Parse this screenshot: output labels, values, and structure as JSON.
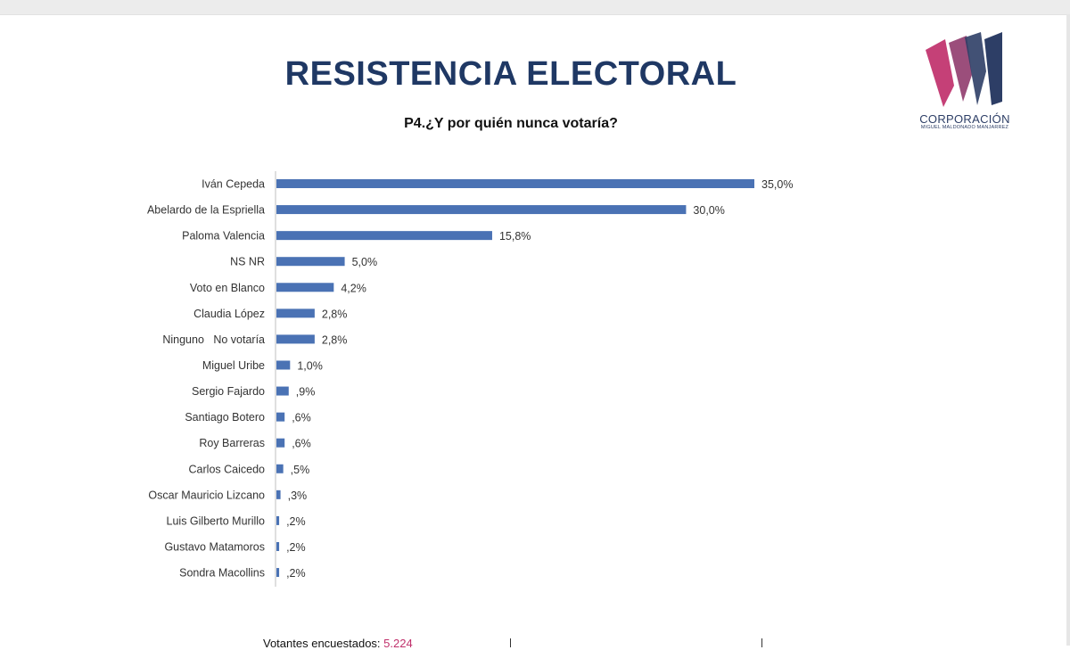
{
  "header": {
    "title": "RESISTENCIA ELECTORAL",
    "subtitle": "P4.¿Y por quién nunca votaría?"
  },
  "logo": {
    "word": "CORPORACIÓN",
    "subword": "MIGUEL MALDONADO MANJARREZ",
    "colors": [
      "#c0306b",
      "#2d3e66"
    ]
  },
  "footer": {
    "label": "Votantes encuestados:",
    "value": "5.224"
  },
  "chart_data": {
    "type": "bar",
    "orientation": "horizontal",
    "categories": [
      "Iván Cepeda",
      "Abelardo de la Espriella",
      "Paloma Valencia",
      "NS NR",
      "Voto en Blanco",
      "Claudia López",
      "Ninguno   No votaría",
      "Miguel Uribe",
      "Sergio Fajardo",
      "Santiago Botero",
      "Roy Barreras",
      "Carlos Caicedo",
      "Oscar Mauricio Lizcano",
      "Luis Gilberto Murillo",
      "Gustavo Matamoros",
      "Sondra Macollins"
    ],
    "values": [
      35.0,
      30.0,
      15.8,
      5.0,
      4.2,
      2.8,
      2.8,
      1.0,
      0.9,
      0.6,
      0.6,
      0.5,
      0.3,
      0.2,
      0.2,
      0.2
    ],
    "labels": [
      "35,0%",
      "30,0%",
      "15,8%",
      "5,0%",
      "4,2%",
      "2,8%",
      "2,8%",
      "1,0%",
      ",9%",
      ",6%",
      ",6%",
      ",5%",
      ",3%",
      ",2%",
      ",2%",
      ",2%"
    ],
    "bar_color": "#4a72b4",
    "grid": false,
    "legend": "none"
  }
}
